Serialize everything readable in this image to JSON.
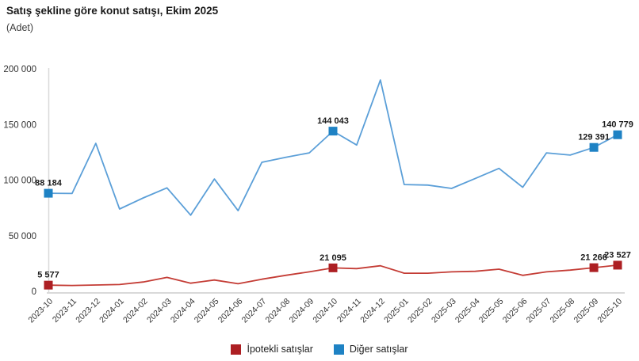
{
  "header": {
    "title": "Satış şekline göre konut satışı, Ekim 2025",
    "subtitle": "(Adet)"
  },
  "chart_data": {
    "type": "line",
    "title": "Satış şekline göre konut satışı, Ekim 2025",
    "subtitle": "(Adet)",
    "ylabel": "Adet",
    "ylim": [
      0,
      200000
    ],
    "yticks": [
      0,
      50000,
      100000,
      150000,
      200000
    ],
    "ytick_labels": [
      "0",
      "50 000",
      "100 000",
      "150 000",
      "200 000"
    ],
    "grid": false,
    "legend_position": "bottom-center",
    "axis_color": "#d9d9d9",
    "categories": [
      "2023-10",
      "2023-11",
      "2023-12",
      "2024-01",
      "2024-02",
      "2024-03",
      "2024-04",
      "2024-05",
      "2024-06",
      "2024-07",
      "2024-08",
      "2024-09",
      "2024-10",
      "2024-11",
      "2024-12",
      "2025-01",
      "2025-02",
      "2025-03",
      "2025-04",
      "2025-05",
      "2025-06",
      "2025-07",
      "2025-08",
      "2025-09",
      "2025-10"
    ],
    "series": [
      {
        "name": "İpotekli satışlar",
        "key": "ipotekli-satislar",
        "line_color": "#c43c35",
        "marker_color": "#ad1f23",
        "values": [
          5577,
          5300,
          5700,
          6100,
          8400,
          12500,
          7300,
          10200,
          6800,
          10900,
          14400,
          17500,
          21095,
          20400,
          23000,
          16300,
          16300,
          17500,
          18000,
          19900,
          14400,
          17500,
          19100,
          21266,
          23527
        ],
        "data_labels": {
          "0": "5 577",
          "12": "21 095",
          "23": "21 266",
          "24": "23 527"
        }
      },
      {
        "name": "Diğer satışlar",
        "key": "diger-satislar",
        "line_color": "#5b9fd8",
        "marker_color": "#1e82c4",
        "values": [
          88184,
          88000,
          133000,
          74000,
          84000,
          93000,
          68500,
          101000,
          72500,
          116000,
          120500,
          124500,
          144043,
          131500,
          190000,
          96000,
          95500,
          92500,
          101500,
          110500,
          93500,
          124500,
          122500,
          129391,
          140779
        ],
        "data_labels": {
          "0": "88 184",
          "12": "144 043",
          "23": "129 391",
          "24": "140 779"
        }
      }
    ]
  }
}
